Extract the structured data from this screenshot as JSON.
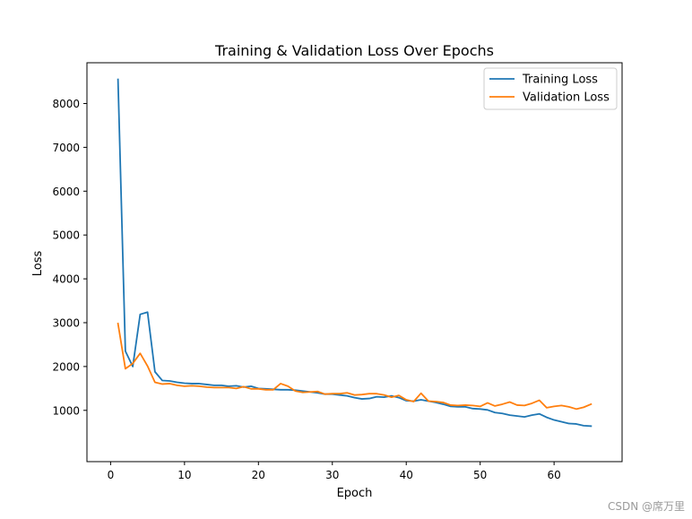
{
  "chart_data": {
    "type": "line",
    "title": "Training & Validation Loss Over Epochs",
    "xlabel": "Epoch",
    "ylabel": "Loss",
    "xlim": [
      -3.2,
      69.2
    ],
    "ylim": [
      -170,
      8930
    ],
    "xticks": [
      0,
      10,
      20,
      30,
      40,
      50,
      60
    ],
    "yticks": [
      1000,
      2000,
      3000,
      4000,
      5000,
      6000,
      7000,
      8000
    ],
    "grid": false,
    "legend_position": "top-right",
    "series": [
      {
        "name": "Training Loss",
        "color": "#1f77b4",
        "x": [
          1,
          2,
          3,
          4,
          5,
          6,
          7,
          8,
          9,
          10,
          11,
          12,
          13,
          14,
          15,
          16,
          17,
          18,
          19,
          20,
          21,
          22,
          23,
          24,
          25,
          26,
          27,
          28,
          29,
          30,
          31,
          32,
          33,
          34,
          35,
          36,
          37,
          38,
          39,
          40,
          41,
          42,
          43,
          44,
          45,
          46,
          47,
          48,
          49,
          50,
          51,
          52,
          53,
          54,
          55,
          56,
          57,
          58,
          59,
          60,
          61,
          62,
          63,
          64,
          65
        ],
        "values": [
          8550,
          2350,
          2000,
          3190,
          3240,
          1880,
          1680,
          1670,
          1640,
          1620,
          1610,
          1610,
          1590,
          1570,
          1570,
          1550,
          1560,
          1530,
          1550,
          1500,
          1490,
          1480,
          1470,
          1470,
          1460,
          1440,
          1420,
          1400,
          1370,
          1370,
          1350,
          1330,
          1290,
          1260,
          1270,
          1310,
          1300,
          1330,
          1290,
          1220,
          1210,
          1240,
          1210,
          1180,
          1140,
          1090,
          1080,
          1080,
          1040,
          1030,
          1010,
          950,
          930,
          890,
          870,
          850,
          890,
          920,
          840,
          780,
          740,
          700,
          690,
          650,
          640
        ]
      },
      {
        "name": "Validation Loss",
        "color": "#ff7f0e",
        "x": [
          1,
          2,
          3,
          4,
          5,
          6,
          7,
          8,
          9,
          10,
          11,
          12,
          13,
          14,
          15,
          16,
          17,
          18,
          19,
          20,
          21,
          22,
          23,
          24,
          25,
          26,
          27,
          28,
          29,
          30,
          31,
          32,
          33,
          34,
          35,
          36,
          37,
          38,
          39,
          40,
          41,
          42,
          43,
          44,
          45,
          46,
          47,
          48,
          49,
          50,
          51,
          52,
          53,
          54,
          55,
          56,
          57,
          58,
          59,
          60,
          61,
          62,
          63,
          64,
          65
        ],
        "values": [
          2980,
          1950,
          2070,
          2300,
          2010,
          1640,
          1600,
          1610,
          1570,
          1550,
          1560,
          1550,
          1530,
          1520,
          1520,
          1520,
          1500,
          1540,
          1490,
          1490,
          1470,
          1470,
          1610,
          1550,
          1440,
          1410,
          1420,
          1430,
          1370,
          1380,
          1380,
          1400,
          1350,
          1360,
          1380,
          1380,
          1350,
          1300,
          1340,
          1240,
          1200,
          1390,
          1210,
          1200,
          1180,
          1120,
          1110,
          1120,
          1110,
          1090,
          1170,
          1100,
          1140,
          1190,
          1120,
          1110,
          1160,
          1230,
          1060,
          1090,
          1110,
          1080,
          1030,
          1070,
          1140
        ]
      }
    ]
  },
  "watermark": "CSDN @席万里"
}
